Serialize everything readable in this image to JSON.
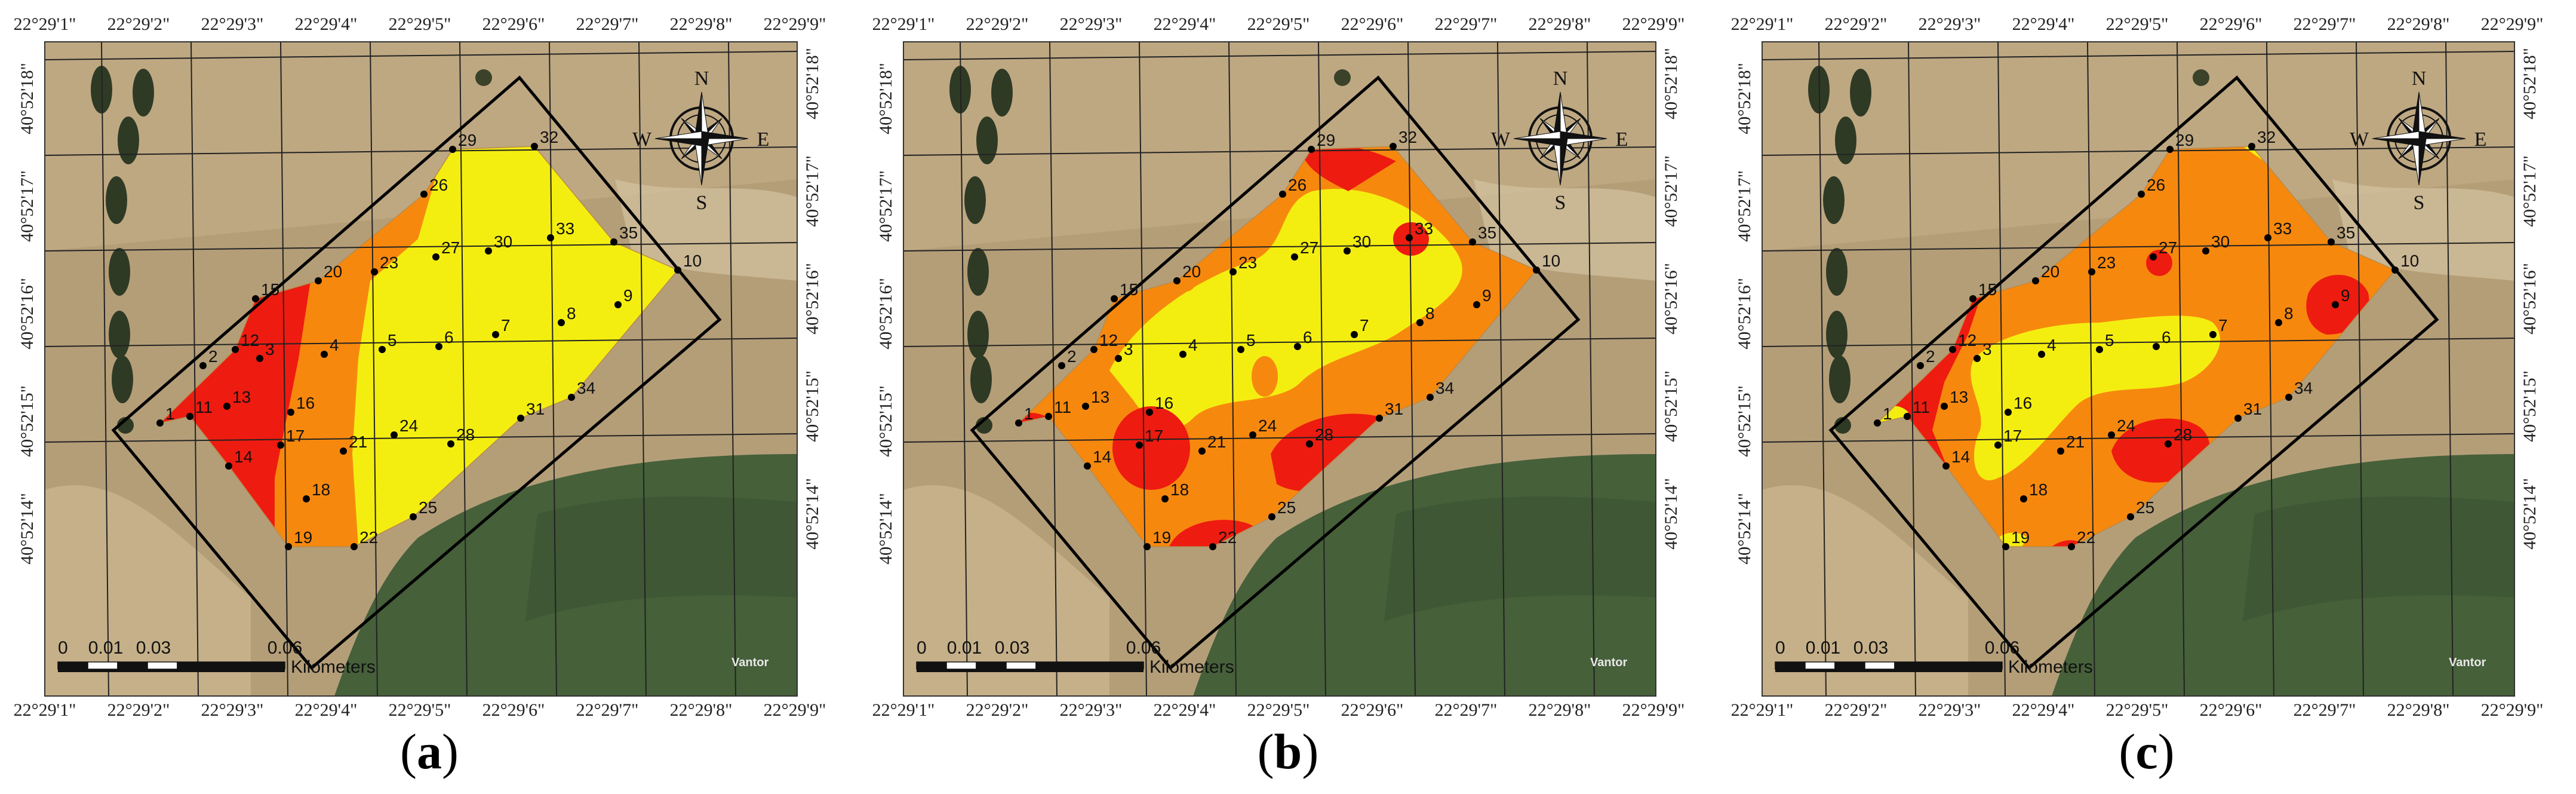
{
  "x_ticks": [
    "22°29'1\"",
    "22°29'2\"",
    "22°29'3\"",
    "22°29'4\"",
    "22°29'5\"",
    "22°29'6\"",
    "22°29'7\"",
    "22°29'8\"",
    "22°29'9\""
  ],
  "y_ticks": [
    "40°52'18\"",
    "40°52'17\"",
    "40°52'16\"",
    "40°52'15\"",
    "40°52'14\""
  ],
  "compass": {
    "n": "N",
    "s": "S",
    "e": "E",
    "w": "W"
  },
  "scale_bar": {
    "labels": [
      "0",
      "0.01",
      "0.03",
      "0.06"
    ],
    "unit": "Kilometers"
  },
  "vendor_text": "Vantor",
  "colors": {
    "yellow": "#f4ee10",
    "orange": "#f7880e",
    "red": "#ee1b10",
    "field": "#b49e78",
    "green": "#46603a"
  },
  "points": [
    {
      "id": "1",
      "x": 1
    },
    {
      "id": "2",
      "x": 2
    },
    {
      "id": "3",
      "x": 3
    },
    {
      "id": "4",
      "x": 4
    },
    {
      "id": "5",
      "x": 5
    },
    {
      "id": "6",
      "x": 6
    },
    {
      "id": "7",
      "x": 7
    },
    {
      "id": "8",
      "x": 8
    },
    {
      "id": "9",
      "x": 9
    },
    {
      "id": "10",
      "x": 10
    },
    {
      "id": "11",
      "x": 11
    },
    {
      "id": "12",
      "x": 12
    },
    {
      "id": "13",
      "x": 13
    },
    {
      "id": "14",
      "x": 14
    },
    {
      "id": "15",
      "x": 15
    },
    {
      "id": "16",
      "x": 16
    },
    {
      "id": "17",
      "x": 17
    },
    {
      "id": "18",
      "x": 18
    },
    {
      "id": "19",
      "x": 19
    },
    {
      "id": "20",
      "x": 20
    },
    {
      "id": "21",
      "x": 21
    },
    {
      "id": "22",
      "x": 22
    },
    {
      "id": "23",
      "x": 23
    },
    {
      "id": "24",
      "x": 24
    },
    {
      "id": "25",
      "x": 25
    },
    {
      "id": "26",
      "x": 26
    },
    {
      "id": "27",
      "x": 27
    },
    {
      "id": "28",
      "x": 28
    },
    {
      "id": "29",
      "x": 29
    },
    {
      "id": "30",
      "x": 30
    },
    {
      "id": "31",
      "x": 31
    },
    {
      "id": "32",
      "x": 32
    },
    {
      "id": "33",
      "x": 33
    },
    {
      "id": "34",
      "x": 34
    },
    {
      "id": "35",
      "x": 35
    }
  ],
  "panels": [
    {
      "label": "a",
      "caption_open": "(",
      "caption_close": ")"
    },
    {
      "label": "b",
      "caption_open": "(",
      "caption_close": ")"
    },
    {
      "label": "c",
      "caption_open": "(",
      "caption_close": ")"
    }
  ]
}
